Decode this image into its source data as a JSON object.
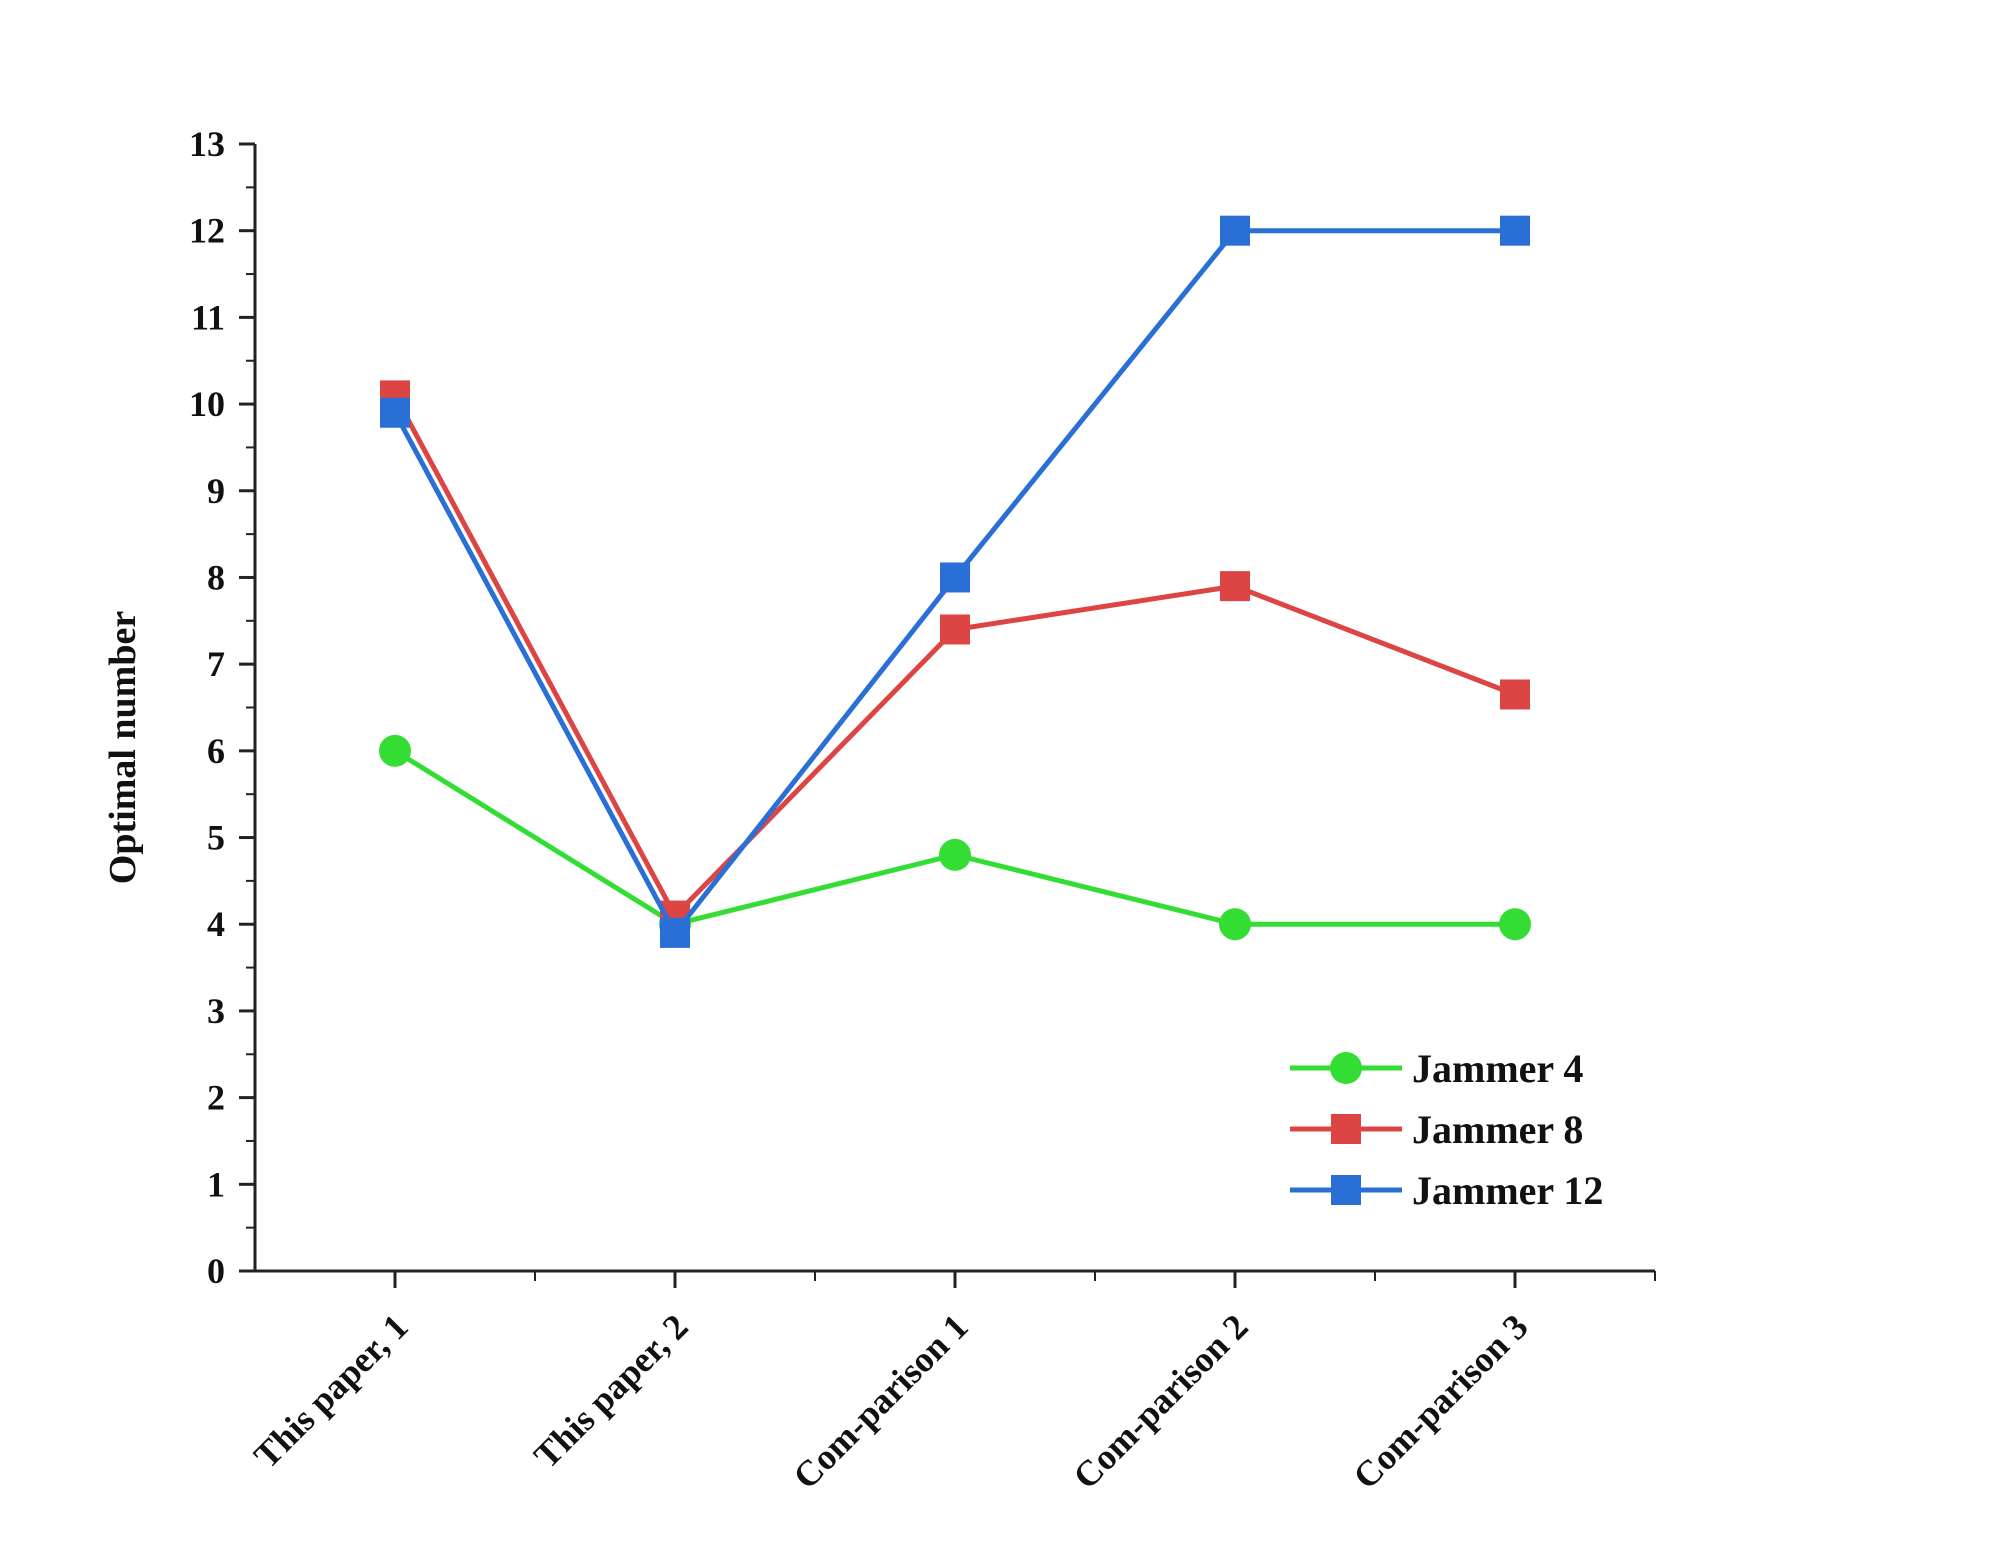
{
  "chart_data": {
    "type": "line",
    "title": "",
    "xlabel": "",
    "ylabel": "Optimal number",
    "categories": [
      "This paper, 1",
      "This paper, 2",
      "Com-parison 1",
      "Com-parison 2",
      "Com-parison 3"
    ],
    "ylim": [
      0,
      13
    ],
    "yticks": [
      0,
      1,
      2,
      3,
      4,
      5,
      6,
      7,
      8,
      9,
      10,
      11,
      12,
      13
    ],
    "grid": false,
    "legend_position": "bottom-right",
    "series": [
      {
        "name": "Jammer 4",
        "values": [
          6,
          4,
          4.8,
          4,
          4
        ],
        "color": "#33dd33",
        "marker": "circle"
      },
      {
        "name": "Jammer 8",
        "values": [
          10.1,
          4.1,
          7.4,
          7.9,
          6.65
        ],
        "color": "#dd4444",
        "marker": "square"
      },
      {
        "name": "Jammer 12",
        "values": [
          9.9,
          3.9,
          8,
          12,
          12
        ],
        "color": "#2a6fd6",
        "marker": "square"
      }
    ]
  }
}
